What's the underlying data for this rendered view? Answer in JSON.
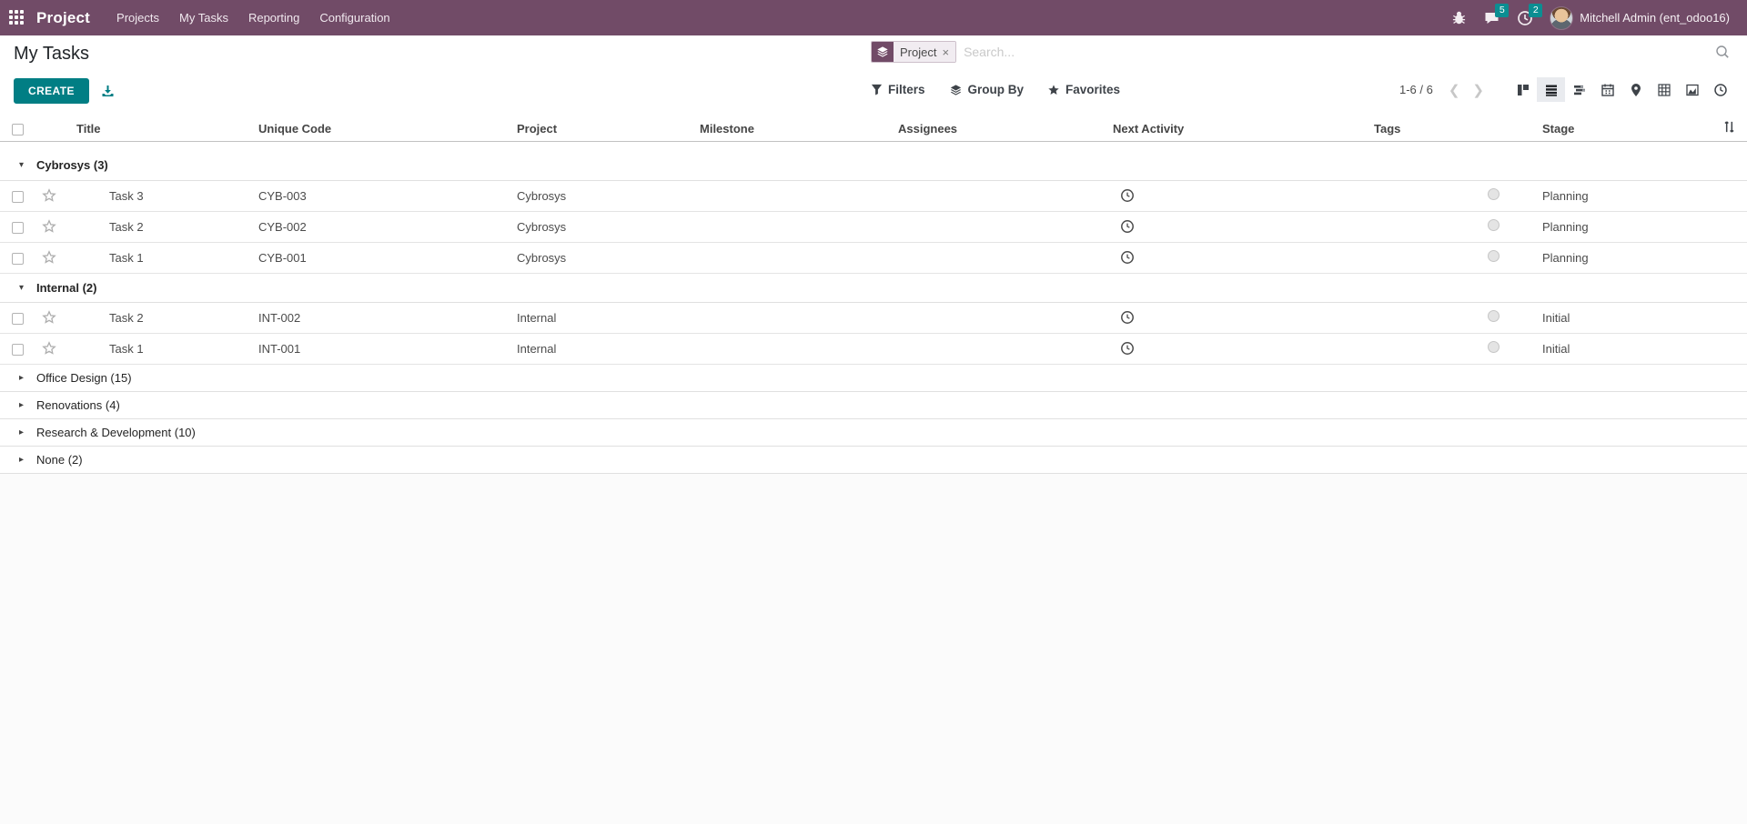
{
  "colors": {
    "navbar": "#714B67",
    "accent": "#017E84",
    "badge": "#0b8e92"
  },
  "navbar": {
    "apps_menu_icon": "grid-icon",
    "app_name": "Project",
    "menus": [
      {
        "label": "Projects"
      },
      {
        "label": "My Tasks"
      },
      {
        "label": "Reporting"
      },
      {
        "label": "Configuration"
      }
    ],
    "systray": {
      "debug_icon": "bug-icon",
      "messages_icon": "chat-bubble-icon",
      "messages_count": "5",
      "activities_icon": "clock-icon",
      "activities_count": "2",
      "user_name": "Mitchell Admin (ent_odoo16)"
    }
  },
  "control_panel": {
    "title": "My Tasks",
    "create_label": "CREATE",
    "export_icon": "download-icon",
    "search": {
      "facet_icon": "layers-icon",
      "facet_label": "Project",
      "facet_remove": "×",
      "placeholder": "Search...",
      "magnifier_icon": "search-icon"
    },
    "filters_label": "Filters",
    "filters_icon": "funnel-icon",
    "group_by_label": "Group By",
    "group_by_icon": "layers-icon",
    "favorites_label": "Favorites",
    "favorites_icon": "star-icon",
    "pager": {
      "text": "1-6 / 6",
      "prev_icon": "chevron-left-icon",
      "next_icon": "chevron-right-icon"
    },
    "view_switcher": [
      {
        "name": "kanban",
        "icon": "kanban-view-icon",
        "active": false
      },
      {
        "name": "list",
        "icon": "list-view-icon",
        "active": true
      },
      {
        "name": "gantt",
        "icon": "gantt-view-icon",
        "active": false
      },
      {
        "name": "calendar",
        "icon": "calendar-view-icon",
        "active": false
      },
      {
        "name": "map",
        "icon": "map-marker-icon",
        "active": false
      },
      {
        "name": "pivot",
        "icon": "pivot-view-icon",
        "active": false
      },
      {
        "name": "graph",
        "icon": "graph-view-icon",
        "active": false
      },
      {
        "name": "activity",
        "icon": "activity-view-icon",
        "active": false
      }
    ]
  },
  "list": {
    "columns": [
      "Title",
      "Unique Code",
      "Project",
      "Milestone",
      "Assignees",
      "Next Activity",
      "Tags",
      "Stage"
    ],
    "optional_columns_icon": "sliders-icon",
    "groups": [
      {
        "label": "Cybrosys (3)",
        "expanded": true,
        "rows": [
          {
            "title": "Task 3",
            "unique_code": "CYB-003",
            "project": "Cybrosys",
            "milestone": "",
            "assignees": "",
            "next_activity_icon": "clock-icon",
            "tags": "",
            "kanban_state_icon": "status-circle-icon",
            "stage": "Planning"
          },
          {
            "title": "Task 2",
            "unique_code": "CYB-002",
            "project": "Cybrosys",
            "milestone": "",
            "assignees": "",
            "next_activity_icon": "clock-icon",
            "tags": "",
            "kanban_state_icon": "status-circle-icon",
            "stage": "Planning"
          },
          {
            "title": "Task 1",
            "unique_code": "CYB-001",
            "project": "Cybrosys",
            "milestone": "",
            "assignees": "",
            "next_activity_icon": "clock-icon",
            "tags": "",
            "kanban_state_icon": "status-circle-icon",
            "stage": "Planning"
          }
        ]
      },
      {
        "label": "Internal (2)",
        "expanded": true,
        "rows": [
          {
            "title": "Task 2",
            "unique_code": "INT-002",
            "project": "Internal",
            "milestone": "",
            "assignees": "",
            "next_activity_icon": "clock-icon",
            "tags": "",
            "kanban_state_icon": "status-circle-icon",
            "stage": "Initial"
          },
          {
            "title": "Task 1",
            "unique_code": "INT-001",
            "project": "Internal",
            "milestone": "",
            "assignees": "",
            "next_activity_icon": "clock-icon",
            "tags": "",
            "kanban_state_icon": "status-circle-icon",
            "stage": "Initial"
          }
        ]
      },
      {
        "label": "Office Design (15)",
        "expanded": false,
        "rows": []
      },
      {
        "label": "Renovations (4)",
        "expanded": false,
        "rows": []
      },
      {
        "label": "Research & Development (10)",
        "expanded": false,
        "rows": []
      },
      {
        "label": "None (2)",
        "expanded": false,
        "rows": []
      }
    ]
  }
}
